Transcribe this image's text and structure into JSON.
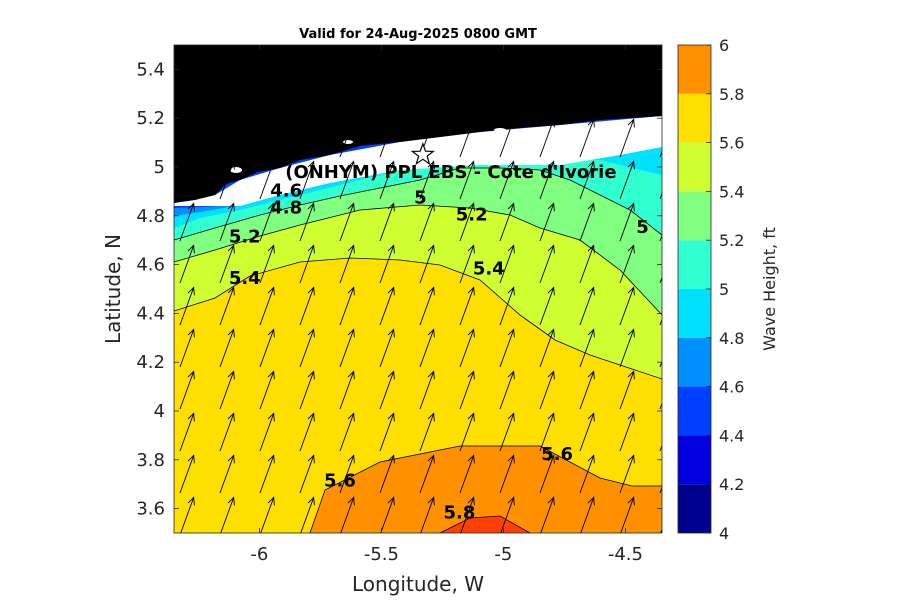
{
  "title": "Valid for 24-Aug-2025 0800 GMT",
  "site_label": "(ONHYM) PPL EBS - Cote d'Ivorie",
  "xlabel": "Longitude, W",
  "ylabel": "Latitude, N",
  "colorbar_label": "Wave Height, ft",
  "chart_data": {
    "type": "heatmap",
    "title": "Valid for 24-Aug-2025 0800 GMT",
    "xlabel": "Longitude, W",
    "ylabel": "Latitude, N",
    "xlim": [
      -6.35,
      -4.35
    ],
    "ylim": [
      3.5,
      5.5
    ],
    "xticks": [
      -6,
      -5.5,
      -5,
      -4.5
    ],
    "xtick_labels": [
      "-6",
      "-5.5",
      "-5",
      "-4.5"
    ],
    "yticks": [
      3.6,
      3.8,
      4.0,
      4.2,
      4.4,
      4.6,
      4.8,
      5.0,
      5.2,
      5.4
    ],
    "ytick_labels": [
      "3.6",
      "3.8",
      "4",
      "4.2",
      "4.4",
      "4.6",
      "4.8",
      "5",
      "5.2",
      "5.4"
    ],
    "colorbar": {
      "label": "Wave Height, ft",
      "range": [
        4,
        6
      ],
      "levels": [
        4,
        4.2,
        4.4,
        4.6,
        4.8,
        5,
        5.2,
        5.4,
        5.6,
        5.8,
        6
      ],
      "tick_labels": [
        "4",
        "4.2",
        "4.4",
        "4.6",
        "4.8",
        "5",
        "5.2",
        "5.4",
        "5.6",
        "5.8",
        "6"
      ],
      "colors": [
        "#00008f",
        "#0000df",
        "#0040ff",
        "#0090ff",
        "#00e0ff",
        "#30ffcf",
        "#80ff80",
        "#cfff30",
        "#ffdf00",
        "#ff9000",
        "#ff4000"
      ]
    },
    "contour_labels": [
      {
        "text": "4.6",
        "lon": -5.89,
        "lat": 4.88
      },
      {
        "text": "4.8",
        "lon": -5.89,
        "lat": 4.81
      },
      {
        "text": "5",
        "lon": -5.34,
        "lat": 4.85
      },
      {
        "text": "5.2",
        "lon": -6.06,
        "lat": 4.69
      },
      {
        "text": "5.2",
        "lon": -5.13,
        "lat": 4.78
      },
      {
        "text": "5",
        "lon": -4.43,
        "lat": 4.73
      },
      {
        "text": "5.4",
        "lon": -6.06,
        "lat": 4.52
      },
      {
        "text": "5.4",
        "lon": -5.06,
        "lat": 4.56
      },
      {
        "text": "5.6",
        "lon": -5.67,
        "lat": 3.69
      },
      {
        "text": "5.6",
        "lon": -4.78,
        "lat": 3.8
      },
      {
        "text": "5.8",
        "lon": -5.18,
        "lat": 3.56
      }
    ],
    "site_marker": {
      "label": "(ONHYM) PPL EBS - Cote d'Ivorie",
      "lon": -5.33,
      "lat": 5.05
    },
    "wave_direction": "arrows pointing north-northeast across the domain",
    "land": "black landmass along the north edge"
  },
  "colors": {
    "land": "#000000",
    "coast_strip": "#ffffff",
    "contour_line": "#000000"
  }
}
